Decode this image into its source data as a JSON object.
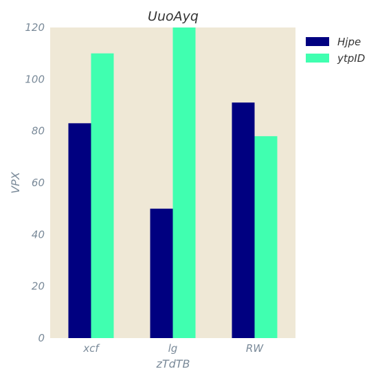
{
  "chart_data": {
    "type": "bar",
    "title": "UuoAyq",
    "xlabel": "zTdTB",
    "ylabel": "VPX",
    "categories": [
      "xcf",
      "lg",
      "RW"
    ],
    "series": [
      {
        "name": "Hjpe",
        "values": [
          83,
          50,
          91
        ],
        "color": "#000080"
      },
      {
        "name": "ytpID",
        "values": [
          110,
          120,
          78
        ],
        "color": "#40ffb0"
      }
    ],
    "ylim": [
      0,
      120
    ],
    "yticks": [
      0,
      20,
      40,
      60,
      80,
      100,
      120
    ],
    "legend_position": "outside-top-right",
    "grid": false,
    "plot_background": "#efe8d6"
  }
}
